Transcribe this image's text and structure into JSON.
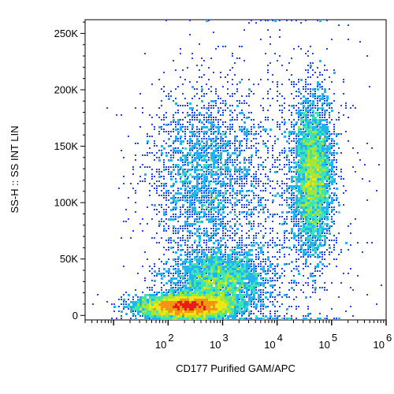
{
  "chart_data": {
    "type": "scatter",
    "title": "",
    "xlabel": "CD177 Purified GAM/APC",
    "ylabel": "SS-H :: SS INT LIN",
    "x_scale": "log",
    "y_scale": "linear",
    "xlim": [
      3,
      1000000
    ],
    "ylim": [
      -4000,
      262144
    ],
    "x_ticks": [
      {
        "value": 100,
        "base": "10",
        "exp": "2"
      },
      {
        "value": 1000,
        "base": "10",
        "exp": "3"
      },
      {
        "value": 10000,
        "base": "10",
        "exp": "4"
      },
      {
        "value": 100000,
        "base": "10",
        "exp": "5"
      },
      {
        "value": 1000000,
        "base": "10",
        "exp": "6"
      }
    ],
    "y_ticks": [
      {
        "value": 0,
        "label": "0"
      },
      {
        "value": 50000,
        "label": "50K"
      },
      {
        "value": 100000,
        "label": "100K"
      },
      {
        "value": 150000,
        "label": "150K"
      },
      {
        "value": 200000,
        "label": "200K"
      },
      {
        "value": 250000,
        "label": "250K"
      }
    ],
    "grid": false,
    "colormap": [
      "#1a1aa8",
      "#2244ee",
      "#22b4f0",
      "#3ce6b4",
      "#a8e632",
      "#f0e614",
      "#f09614",
      "#e81e14"
    ],
    "populations": [
      {
        "x_center": 220,
        "x_spread_decades": 0.42,
        "y_center": 8000,
        "y_spread": 5000,
        "events": 6000
      },
      {
        "x_center": 900,
        "x_spread_decades": 0.45,
        "y_center": 30000,
        "y_spread": 14000,
        "events": 2800
      },
      {
        "x_center": 400,
        "x_spread_decades": 0.5,
        "y_center": 120000,
        "y_spread": 42000,
        "events": 2400
      },
      {
        "x_center": 45000,
        "x_spread_decades": 0.18,
        "y_center": 125000,
        "y_spread": 35000,
        "events": 3800
      },
      {
        "x_center": 10000,
        "x_spread_decades": 0.75,
        "y_center": 100000,
        "y_spread": 70000,
        "events": 1200
      }
    ]
  }
}
